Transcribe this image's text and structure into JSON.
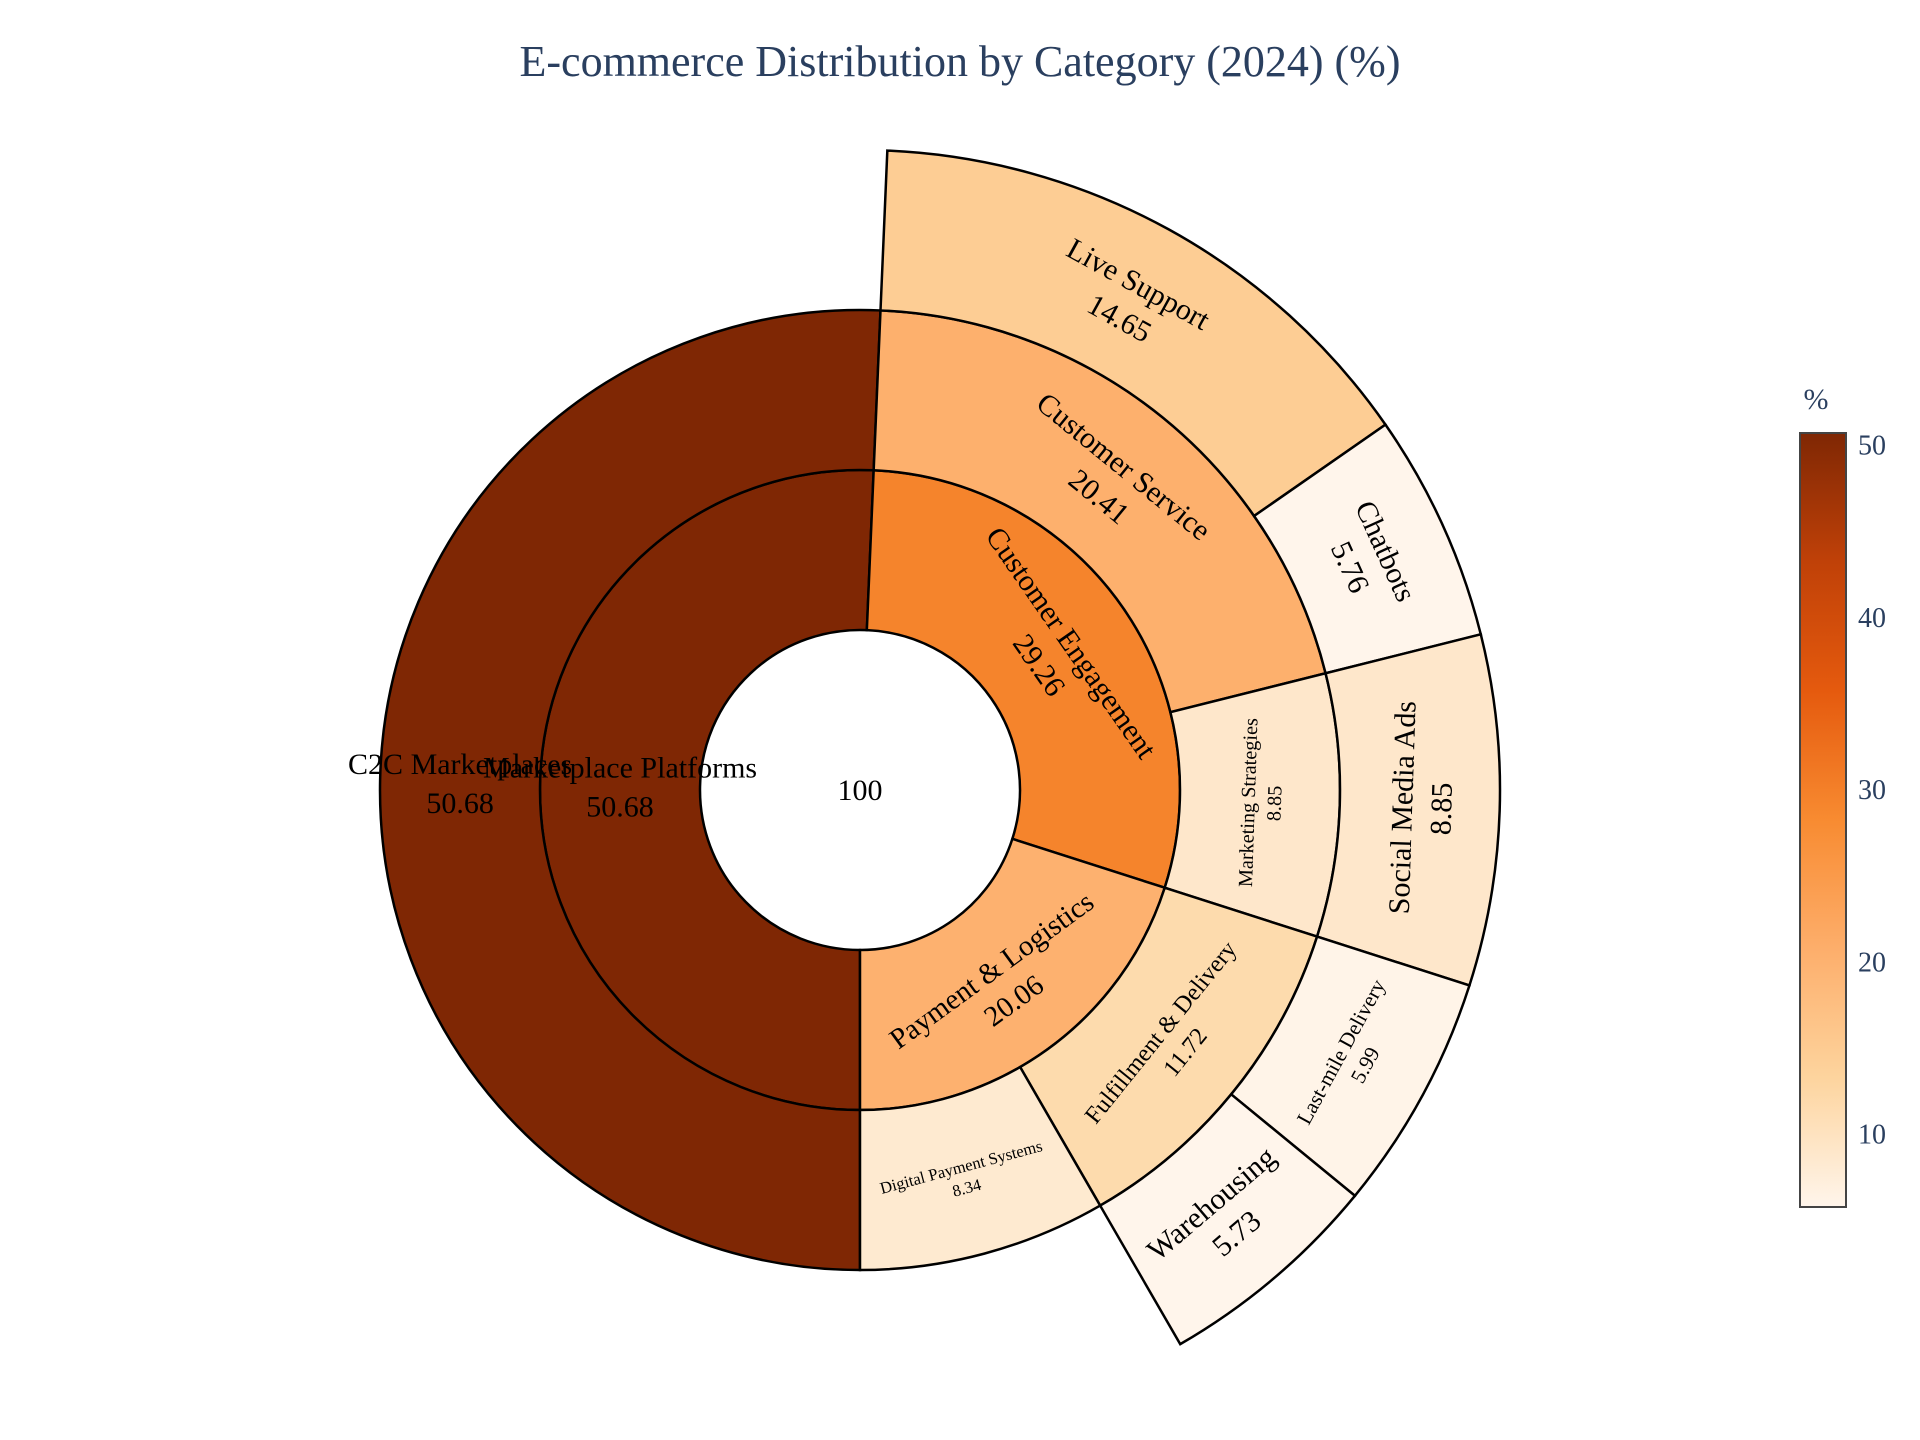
{
  "chart_data": {
    "type": "sunburst",
    "title": "E-commerce Distribution by Category (2024) (%)",
    "root": {
      "label": "",
      "value": 100,
      "value_label": "100"
    },
    "rings": [
      [
        {
          "id": "mp",
          "label": "Marketplace Platforms",
          "value": 50.68,
          "value_label": "50.68",
          "parent": "root"
        },
        {
          "id": "ce",
          "label": "Customer Engagement",
          "value": 29.26,
          "value_label": "29.26",
          "parent": "root"
        },
        {
          "id": "pl",
          "label": "Payment & Logistics",
          "value": 20.06,
          "value_label": "20.06",
          "parent": "root"
        }
      ],
      [
        {
          "id": "c2c",
          "label": "C2C Marketplaces",
          "value": 50.68,
          "value_label": "50.68",
          "parent": "mp"
        },
        {
          "id": "cs",
          "label": "Customer Service",
          "value": 20.41,
          "value_label": "20.41",
          "parent": "ce"
        },
        {
          "id": "ms",
          "label": "Marketing Strategies",
          "value": 8.85,
          "value_label": "8.85",
          "parent": "ce"
        },
        {
          "id": "fd",
          "label": "Fulfillment & Delivery",
          "value": 11.72,
          "value_label": "11.72",
          "parent": "pl"
        },
        {
          "id": "dps",
          "label": "Digital Payment Systems",
          "value": 8.34,
          "value_label": "8.34",
          "parent": "pl"
        }
      ],
      [
        {
          "id": "ls",
          "label": "Live Support",
          "value": 14.65,
          "value_label": "14.65",
          "parent": "cs"
        },
        {
          "id": "cb",
          "label": "Chatbots",
          "value": 5.76,
          "value_label": "5.76",
          "parent": "cs"
        },
        {
          "id": "sma",
          "label": "Social Media Ads",
          "value": 8.85,
          "value_label": "8.85",
          "parent": "ms"
        },
        {
          "id": "lmd",
          "label": "Last-mile Delivery",
          "value": 5.99,
          "value_label": "5.99",
          "parent": "fd"
        },
        {
          "id": "wh",
          "label": "Warehousing",
          "value": 5.73,
          "value_label": "5.73",
          "parent": "fd"
        }
      ]
    ],
    "colorscale": {
      "title": "%",
      "min": 5.73,
      "max": 50.68,
      "ticks": [
        10,
        20,
        30,
        40,
        50
      ],
      "stops": [
        "#fff5eb",
        "#fdd49e",
        "#fdae6b",
        "#f88b31",
        "#e55a0e",
        "#c04108",
        "#7f2704"
      ]
    },
    "center_hole": true
  }
}
